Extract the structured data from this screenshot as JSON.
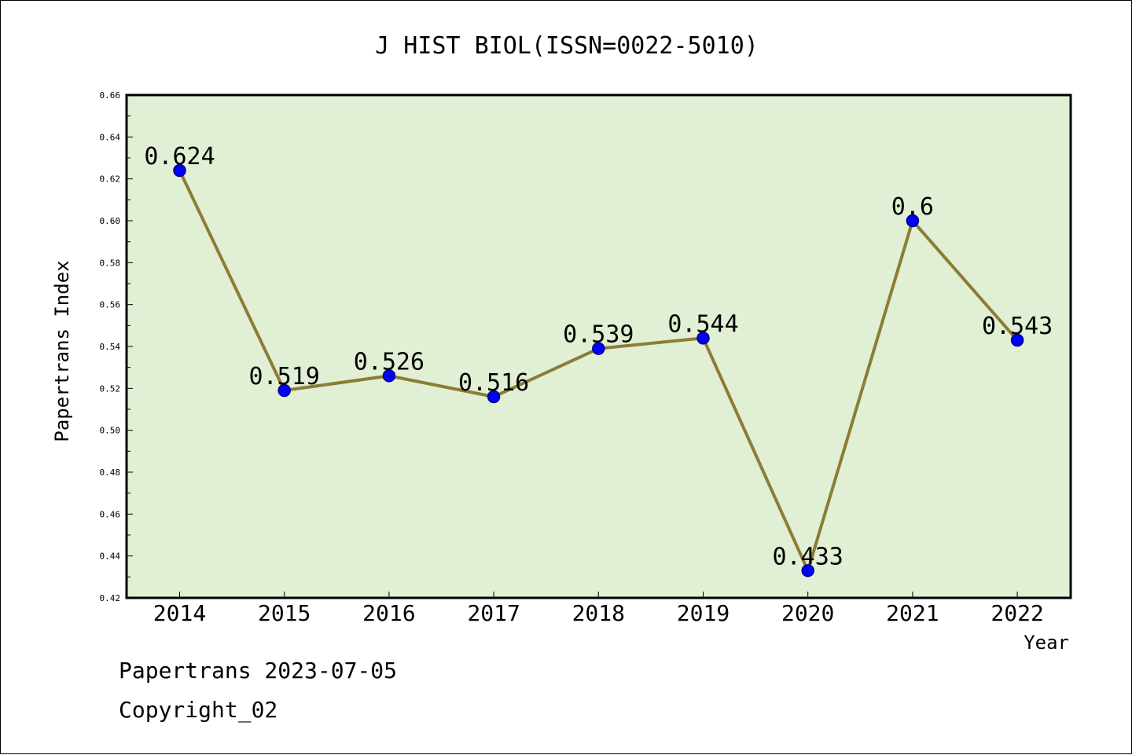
{
  "chart_data": {
    "type": "line",
    "title": "J HIST BIOL(ISSN=0022-5010)",
    "xlabel": "Year",
    "ylabel": "Papertrans Index",
    "categories": [
      "2014",
      "2015",
      "2016",
      "2017",
      "2018",
      "2019",
      "2020",
      "2021",
      "2022"
    ],
    "series": [
      {
        "values": [
          0.624,
          0.519,
          0.526,
          0.516,
          0.539,
          0.544,
          0.433,
          0.6,
          0.543
        ],
        "data_labels": [
          "0.624",
          "0.519",
          "0.526",
          "0.516",
          "0.539",
          "0.544",
          "0.433",
          "0.6",
          "0.543"
        ]
      }
    ],
    "ylim": [
      0.42,
      0.66
    ],
    "yticks": [
      "0.42",
      "0.44",
      "0.46",
      "0.48",
      "0.50",
      "0.52",
      "0.54",
      "0.56",
      "0.58",
      "0.60",
      "0.62",
      "0.64",
      "0.66"
    ],
    "grid": false,
    "legend": "none",
    "colors": {
      "plot_background": "#e1efd4",
      "line": "#8b7d35",
      "marker": "#0000ff",
      "marker_edge": "#000080"
    }
  },
  "footer": {
    "date_text": "Papertrans 2023-07-05",
    "copyright_text": "Copyright_02"
  }
}
